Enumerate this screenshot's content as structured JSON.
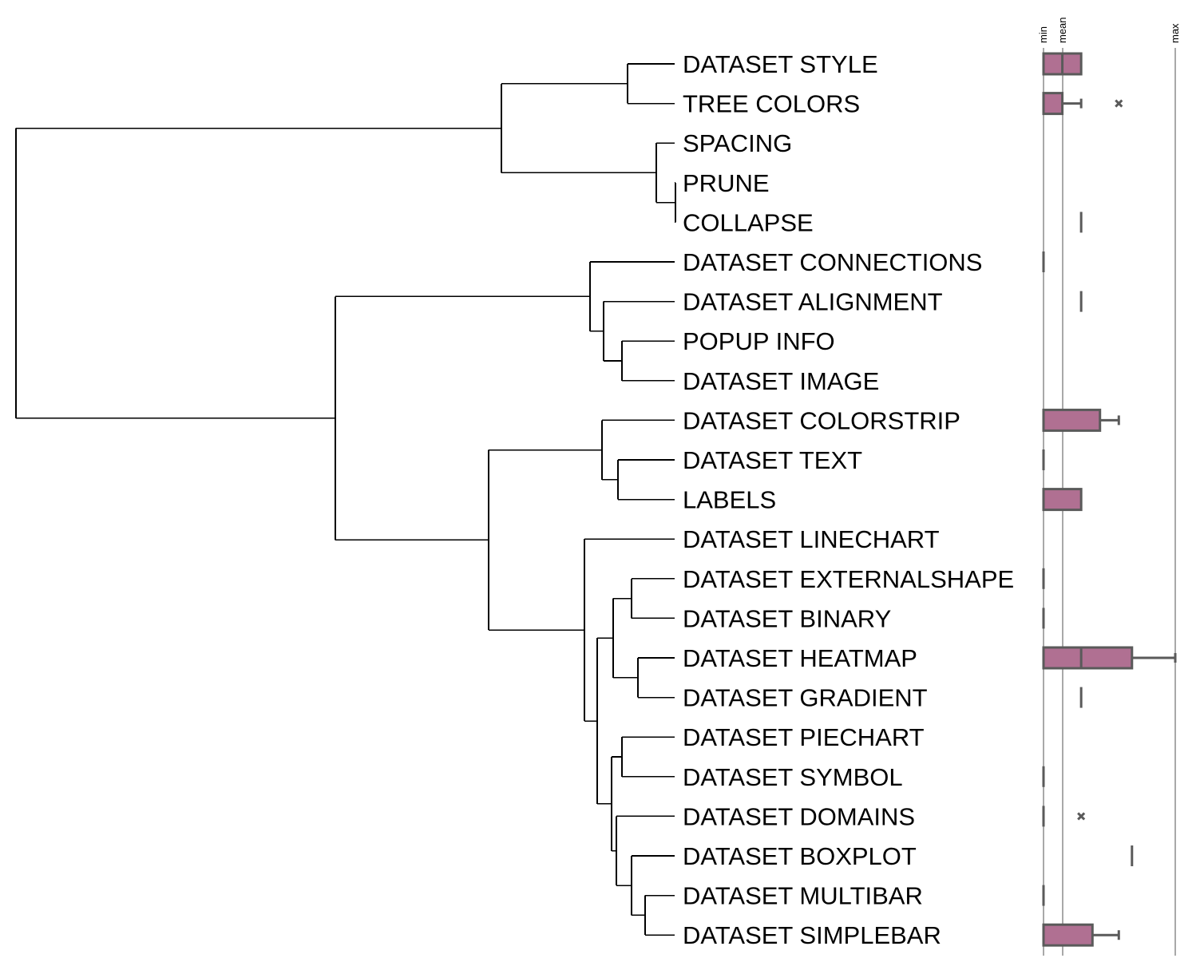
{
  "tree": {
    "leaves": [
      "DATASET STYLE",
      "TREE COLORS",
      "SPACING",
      "PRUNE",
      "COLLAPSE",
      "DATASET CONNECTIONS",
      "DATASET ALIGNMENT",
      "POPUP INFO",
      "DATASET IMAGE",
      "DATASET COLORSTRIP",
      "DATASET TEXT",
      "LABELS",
      "DATASET LINECHART",
      "DATASET EXTERNALSHAPE",
      "DATASET BINARY",
      "DATASET HEATMAP",
      "DATASET GRADIENT",
      "DATASET PIECHART",
      "DATASET SYMBOL",
      "DATASET DOMAINS",
      "DATASET BOXPLOT",
      "DATASET MULTIBAR",
      "DATASET SIMPLEBAR"
    ]
  },
  "boxplot": {
    "axis_labels": {
      "min": "min",
      "mean": "mean",
      "max": "max"
    },
    "axis": {
      "min": 0,
      "mean": 1,
      "max": 7
    },
    "fill_color": "#b07092",
    "stroke_color": "#5a5a5a",
    "rows": [
      {
        "leaf": "DATASET STYLE",
        "q1": 0,
        "median": 1,
        "q3": 2,
        "whisker_high": 2,
        "outliers": []
      },
      {
        "leaf": "TREE COLORS",
        "q1": 0,
        "median": 1,
        "q3": 1,
        "whisker_high": 2,
        "outliers": [
          4
        ]
      },
      {
        "leaf": "SPACING"
      },
      {
        "leaf": "PRUNE"
      },
      {
        "leaf": "COLLAPSE",
        "value": 2
      },
      {
        "leaf": "DATASET CONNECTIONS",
        "value": 0
      },
      {
        "leaf": "DATASET ALIGNMENT",
        "value": 2
      },
      {
        "leaf": "POPUP INFO"
      },
      {
        "leaf": "DATASET IMAGE"
      },
      {
        "leaf": "DATASET COLORSTRIP",
        "q1": 0,
        "median": 3,
        "q3": 3,
        "whisker_high": 4,
        "outliers": []
      },
      {
        "leaf": "DATASET TEXT",
        "value": 0
      },
      {
        "leaf": "LABELS",
        "q1": 0,
        "median": 2,
        "q3": 2,
        "whisker_high": 2,
        "outliers": []
      },
      {
        "leaf": "DATASET LINECHART"
      },
      {
        "leaf": "DATASET EXTERNALSHAPE",
        "value": 0
      },
      {
        "leaf": "DATASET BINARY",
        "value": 0
      },
      {
        "leaf": "DATASET HEATMAP",
        "q1": 0,
        "median": 2,
        "q3": 4.7,
        "whisker_high": 7,
        "outliers": []
      },
      {
        "leaf": "DATASET GRADIENT",
        "value": 2
      },
      {
        "leaf": "DATASET PIECHART"
      },
      {
        "leaf": "DATASET SYMBOL",
        "value": 0
      },
      {
        "leaf": "DATASET DOMAINS",
        "value": 0,
        "outliers": [
          2
        ]
      },
      {
        "leaf": "DATASET BOXPLOT",
        "value": 4.7
      },
      {
        "leaf": "DATASET MULTIBAR",
        "value": 0
      },
      {
        "leaf": "DATASET SIMPLEBAR",
        "q1": 0,
        "median": 2.6,
        "q3": 2.6,
        "whisker_high": 4,
        "outliers": []
      }
    ]
  }
}
